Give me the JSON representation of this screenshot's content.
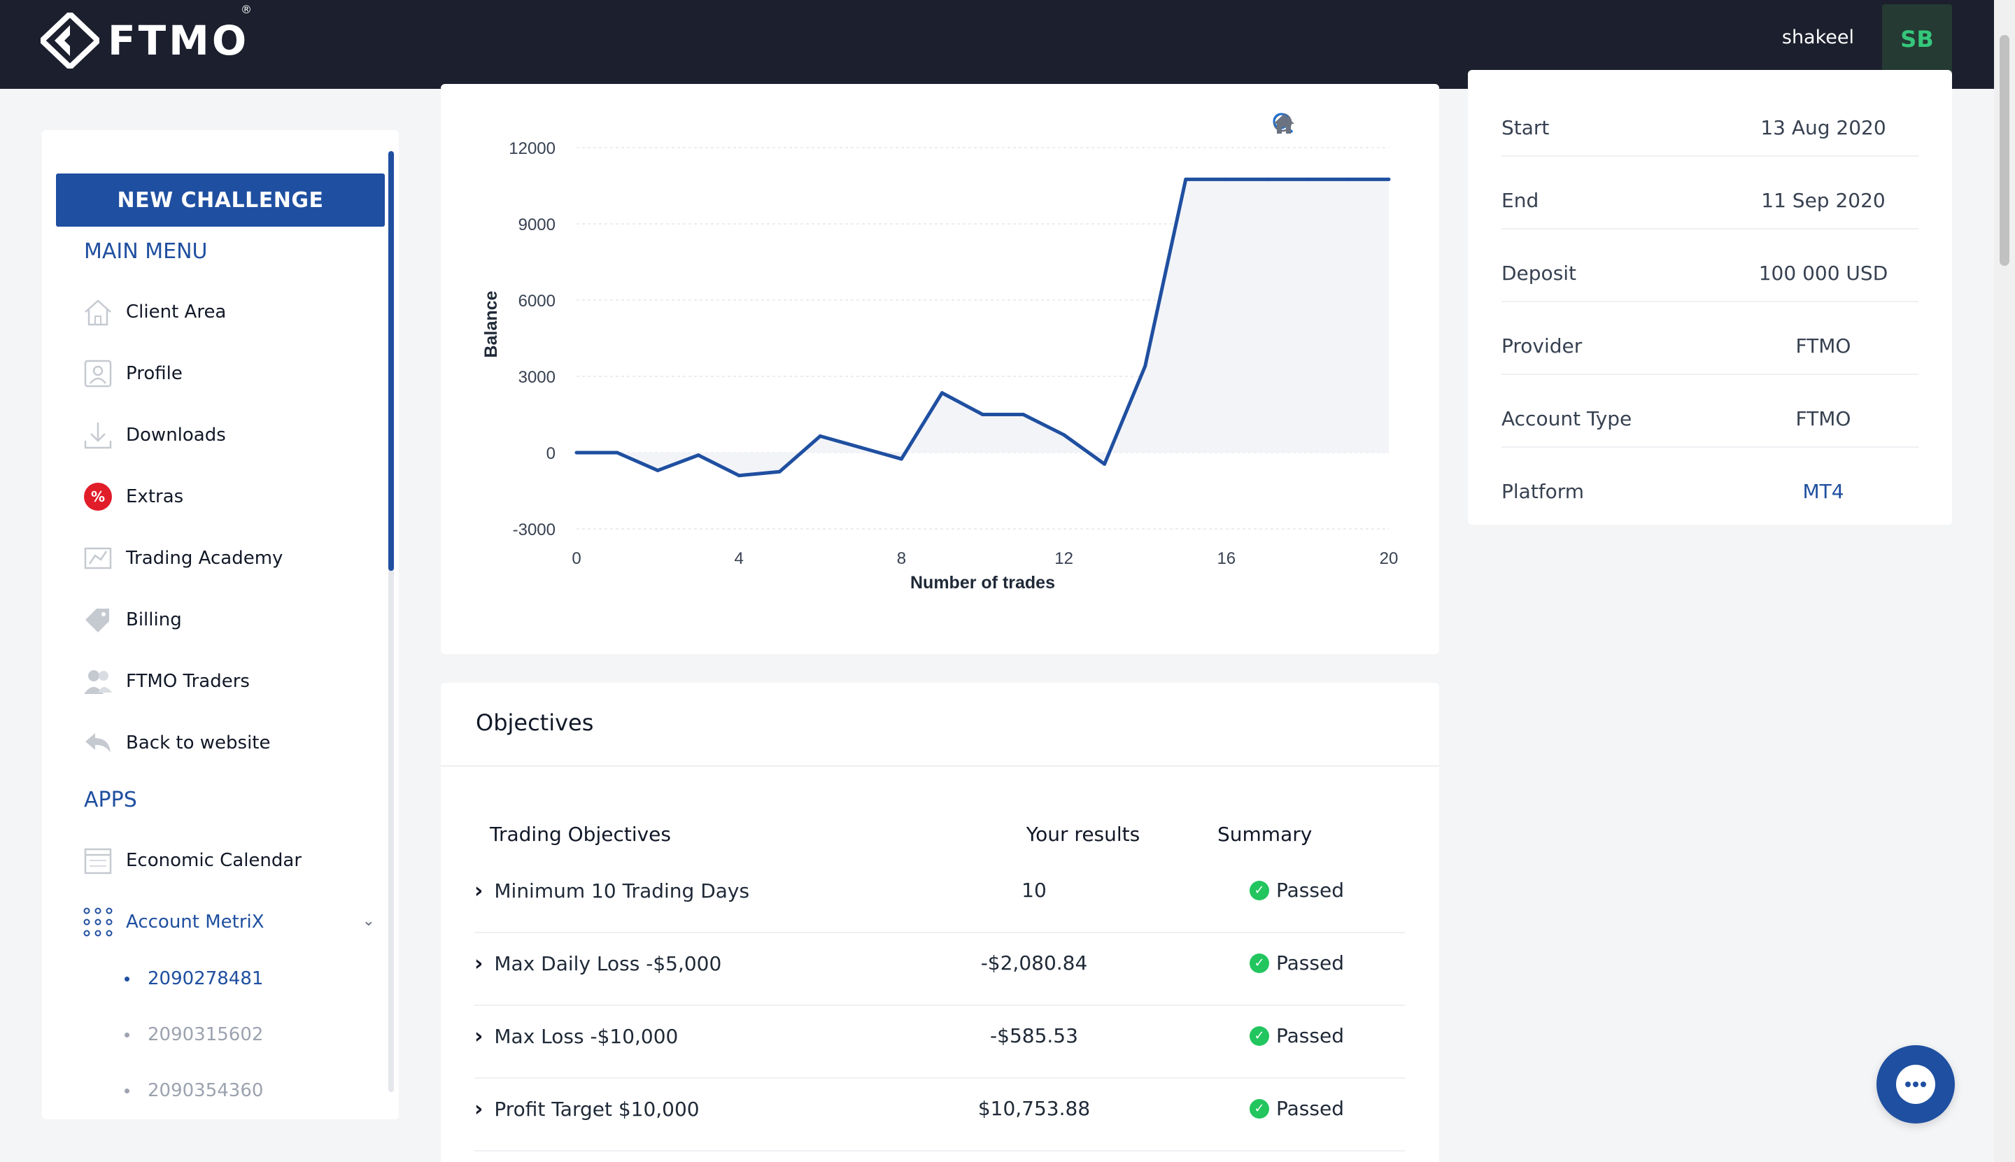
{
  "header": {
    "brand": "FTMO",
    "username": "shakeel",
    "avatar_initials": "SB"
  },
  "sidebar": {
    "new_challenge_label": "NEW CHALLENGE",
    "main_menu_title": "MAIN MENU",
    "main_menu": [
      {
        "label": "Client Area",
        "icon": "home-icon"
      },
      {
        "label": "Profile",
        "icon": "profile-icon"
      },
      {
        "label": "Downloads",
        "icon": "download-icon"
      },
      {
        "label": "Extras",
        "icon": "percent-badge-icon"
      },
      {
        "label": "Trading Academy",
        "icon": "academy-icon"
      },
      {
        "label": "Billing",
        "icon": "billing-tag-icon"
      },
      {
        "label": "FTMO Traders",
        "icon": "traders-icon"
      },
      {
        "label": "Back to website",
        "icon": "back-arrow-icon"
      }
    ],
    "apps_title": "APPS",
    "apps": [
      {
        "label": "Economic Calendar",
        "icon": "calendar-icon"
      },
      {
        "label": "Account MetriX",
        "icon": "dots-grid-icon",
        "expanded": true
      }
    ],
    "accounts": [
      "2090278481",
      "2090315602",
      "2090354360"
    ]
  },
  "chart_data": {
    "type": "area",
    "title": "",
    "xlabel": "Number of trades",
    "ylabel": "Balance",
    "xlim": [
      0,
      20
    ],
    "ylim": [
      -3000,
      12000
    ],
    "x_ticks": [
      "0",
      "4",
      "8",
      "12",
      "16",
      "20"
    ],
    "y_ticks": [
      "12000",
      "9000",
      "6000",
      "3000",
      "0",
      "-3000"
    ],
    "series": [
      {
        "x": [
          0,
          1,
          2,
          3,
          4,
          5,
          6,
          7,
          8,
          9,
          10,
          11,
          12,
          13,
          14,
          15,
          16,
          17,
          18,
          19,
          20
        ],
        "values": [
          0,
          0,
          -700,
          -100,
          -900,
          -750,
          650,
          200,
          -250,
          2350,
          1500,
          1500,
          700,
          -450,
          3400,
          10750,
          10750,
          10750,
          10750,
          10750,
          10750
        ]
      }
    ],
    "colors": {
      "line": "#1f4fa0",
      "fill": "#f3f4f8"
    },
    "grid": true,
    "toolbar_icons": [
      "zoom-in-icon",
      "zoom-out-icon",
      "magnifier-icon",
      "home-reset-icon"
    ]
  },
  "objectives": {
    "title": "Objectives",
    "headers": {
      "objective": "Trading Objectives",
      "results": "Your results",
      "summary": "Summary"
    },
    "rows": [
      {
        "name": "Minimum 10 Trading Days",
        "result": "10",
        "summary": "Passed"
      },
      {
        "name": "Max Daily Loss -$5,000",
        "result": "-$2,080.84",
        "summary": "Passed"
      },
      {
        "name": "Max Loss -$10,000",
        "result": "-$585.53",
        "summary": "Passed"
      },
      {
        "name": "Profit Target $10,000",
        "result": "$10,753.88",
        "summary": "Passed"
      }
    ]
  },
  "account_info": [
    {
      "key": "Start",
      "value": "13 Aug 2020"
    },
    {
      "key": "End",
      "value": "11 Sep 2020"
    },
    {
      "key": "Deposit",
      "value": "100 000 USD"
    },
    {
      "key": "Provider",
      "value": "FTMO"
    },
    {
      "key": "Account Type",
      "value": "FTMO"
    },
    {
      "key": "Platform",
      "value": "MT4"
    }
  ],
  "colors": {
    "brand": "#1f4fa0",
    "topbar": "#1c1f2e",
    "success": "#22c55e"
  }
}
